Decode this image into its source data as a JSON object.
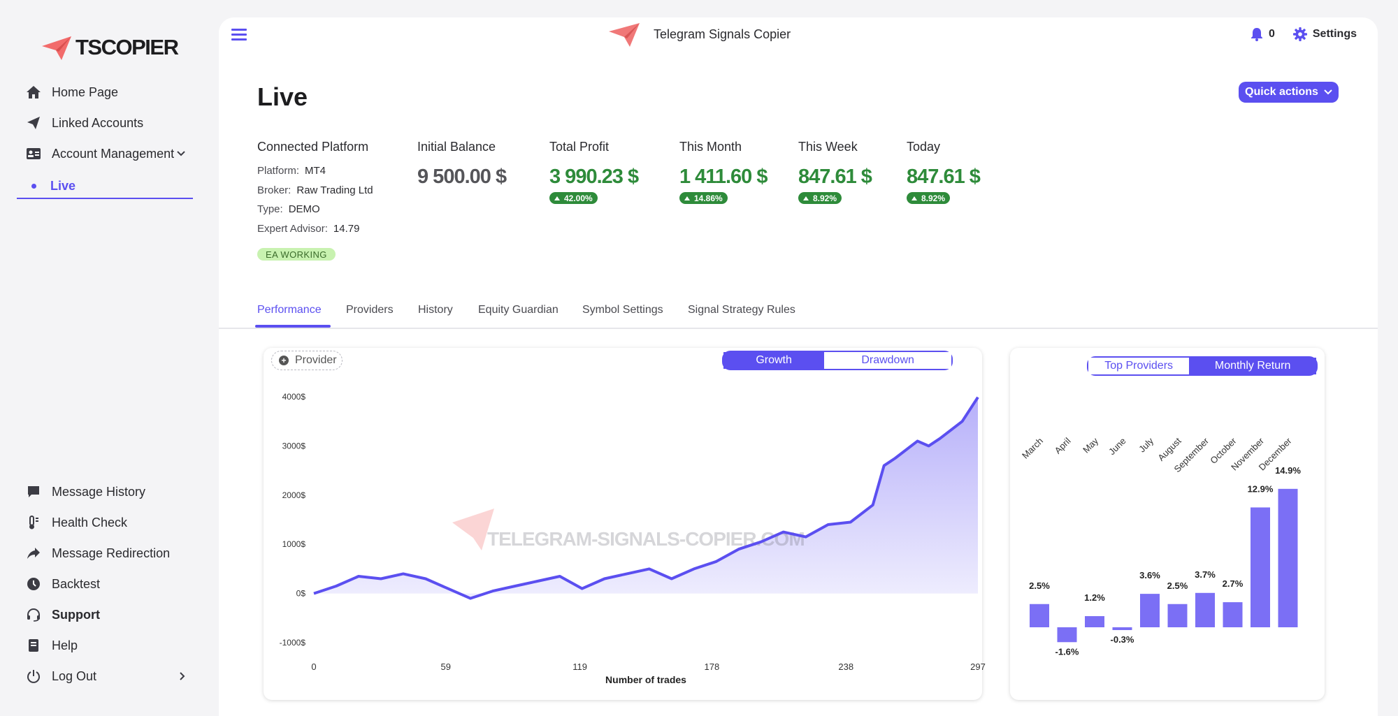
{
  "sidebar": {
    "logo_text": "TSCOPIER",
    "items_top": [
      {
        "label": "Home Page",
        "icon": "home-icon"
      },
      {
        "label": "Linked Accounts",
        "icon": "paper-plane-icon"
      },
      {
        "label": "Account Management",
        "icon": "id-card-icon"
      }
    ],
    "live_label": "Live",
    "items_bottom": [
      {
        "label": "Message History",
        "icon": "chat-icon"
      },
      {
        "label": "Health Check",
        "icon": "thermometer-icon"
      },
      {
        "label": "Message Redirection",
        "icon": "share-arrow-icon"
      },
      {
        "label": "Backtest",
        "icon": "clock-icon"
      },
      {
        "label": "Support",
        "icon": "headset-icon"
      },
      {
        "label": "Help",
        "icon": "book-icon"
      },
      {
        "label": "Log Out",
        "icon": "power-icon"
      }
    ]
  },
  "header": {
    "app_title": "Telegram Signals Copier",
    "notifications_count": "0",
    "settings_label": "Settings"
  },
  "page": {
    "title": "Live",
    "quick_actions_label": "Quick actions"
  },
  "platform": {
    "heading": "Connected Platform",
    "rows": [
      {
        "key": "Platform:",
        "value": "MT4"
      },
      {
        "key": "Broker:",
        "value": "Raw Trading Ltd"
      },
      {
        "key": "Type:",
        "value": "DEMO"
      },
      {
        "key": "Expert Advisor:",
        "value": "14.79"
      }
    ],
    "status_badge": "EA WORKING"
  },
  "stats": [
    {
      "label": "Initial Balance",
      "value": "9 500.00 $",
      "pct": ""
    },
    {
      "label": "Total Profit",
      "value": "3 990.23 $",
      "pct": "42.00%"
    },
    {
      "label": "This Month",
      "value": "1 411.60 $",
      "pct": "14.86%"
    },
    {
      "label": "This Week",
      "value": "847.61 $",
      "pct": "8.92%"
    },
    {
      "label": "Today",
      "value": "847.61 $",
      "pct": "8.92%"
    }
  ],
  "tabs": [
    "Performance",
    "Providers",
    "History",
    "Equity Guardian",
    "Symbol Settings",
    "Signal Strategy Rules"
  ],
  "growth_card": {
    "provider_label": "Provider",
    "toggle": [
      "Growth",
      "Drawdown"
    ],
    "watermark": "TELEGRAM-SIGNALS-COPIER.COM"
  },
  "monthly_card": {
    "toggle": [
      "Top Providers",
      "Monthly Return"
    ]
  },
  "chart_data": [
    {
      "type": "area",
      "title": "",
      "xlabel": "Number of trades",
      "ylabel": "",
      "x_ticks": [
        0,
        59,
        119,
        178,
        238,
        297
      ],
      "y_ticks": [
        "4000$",
        "3000$",
        "2000$",
        "1000$",
        "0$",
        "-1000$"
      ],
      "xlim": [
        0,
        297
      ],
      "ylim": [
        -1000,
        4000
      ],
      "color": "#5b4ff0",
      "series": [
        {
          "x": [
            0,
            10,
            20,
            30,
            40,
            50,
            60,
            70,
            80,
            90,
            100,
            110,
            120,
            130,
            140,
            150,
            160,
            170,
            180,
            190,
            200,
            210,
            220,
            230,
            240,
            250,
            255,
            260,
            270,
            275,
            280,
            290,
            297
          ],
          "values": [
            0,
            150,
            350,
            300,
            400,
            300,
            100,
            -100,
            50,
            150,
            250,
            350,
            100,
            300,
            400,
            500,
            300,
            500,
            650,
            900,
            1050,
            1250,
            1150,
            1400,
            1450,
            1800,
            2600,
            2750,
            3100,
            3000,
            3150,
            3500,
            3990
          ]
        }
      ]
    },
    {
      "type": "bar",
      "title": "",
      "categories": [
        "March",
        "April",
        "May",
        "June",
        "July",
        "August",
        "September",
        "October",
        "November",
        "December"
      ],
      "values": [
        2.5,
        -1.6,
        1.2,
        -0.3,
        3.6,
        2.5,
        3.7,
        2.7,
        12.9,
        14.9
      ],
      "labels": [
        "2.5%",
        "-1.6%",
        "1.2%",
        "-0.3%",
        "3.6%",
        "2.5%",
        "3.7%",
        "2.7%",
        "12.9%",
        "14.9%"
      ],
      "color": "#7b6ff5"
    }
  ]
}
